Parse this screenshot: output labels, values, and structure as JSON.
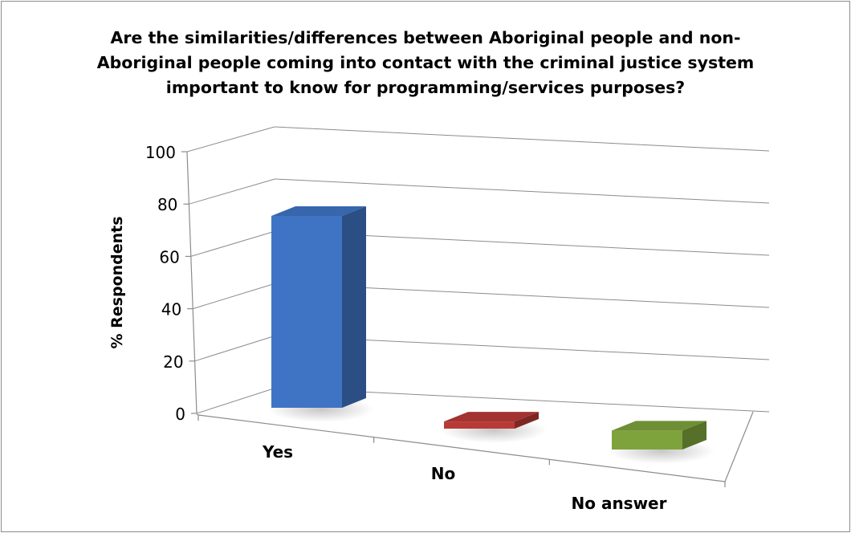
{
  "chart_data": {
    "type": "bar",
    "style": "3d-column",
    "title": "Are the similarities/differences between Aboriginal people and non-Aboriginal people coming into contact with the criminal justice system important to know for programming/services purposes?",
    "xlabel": "",
    "ylabel": "% Respondents",
    "ylim": [
      0,
      100
    ],
    "yticks": [
      "0",
      "20",
      "40",
      "60",
      "80",
      "100"
    ],
    "categories": [
      "Yes",
      "No",
      "No answer"
    ],
    "values": [
      81,
      3,
      8
    ],
    "colors": [
      "#3f74c4",
      "#b83a36",
      "#7ea33c"
    ],
    "grid": true,
    "legend": "none"
  }
}
